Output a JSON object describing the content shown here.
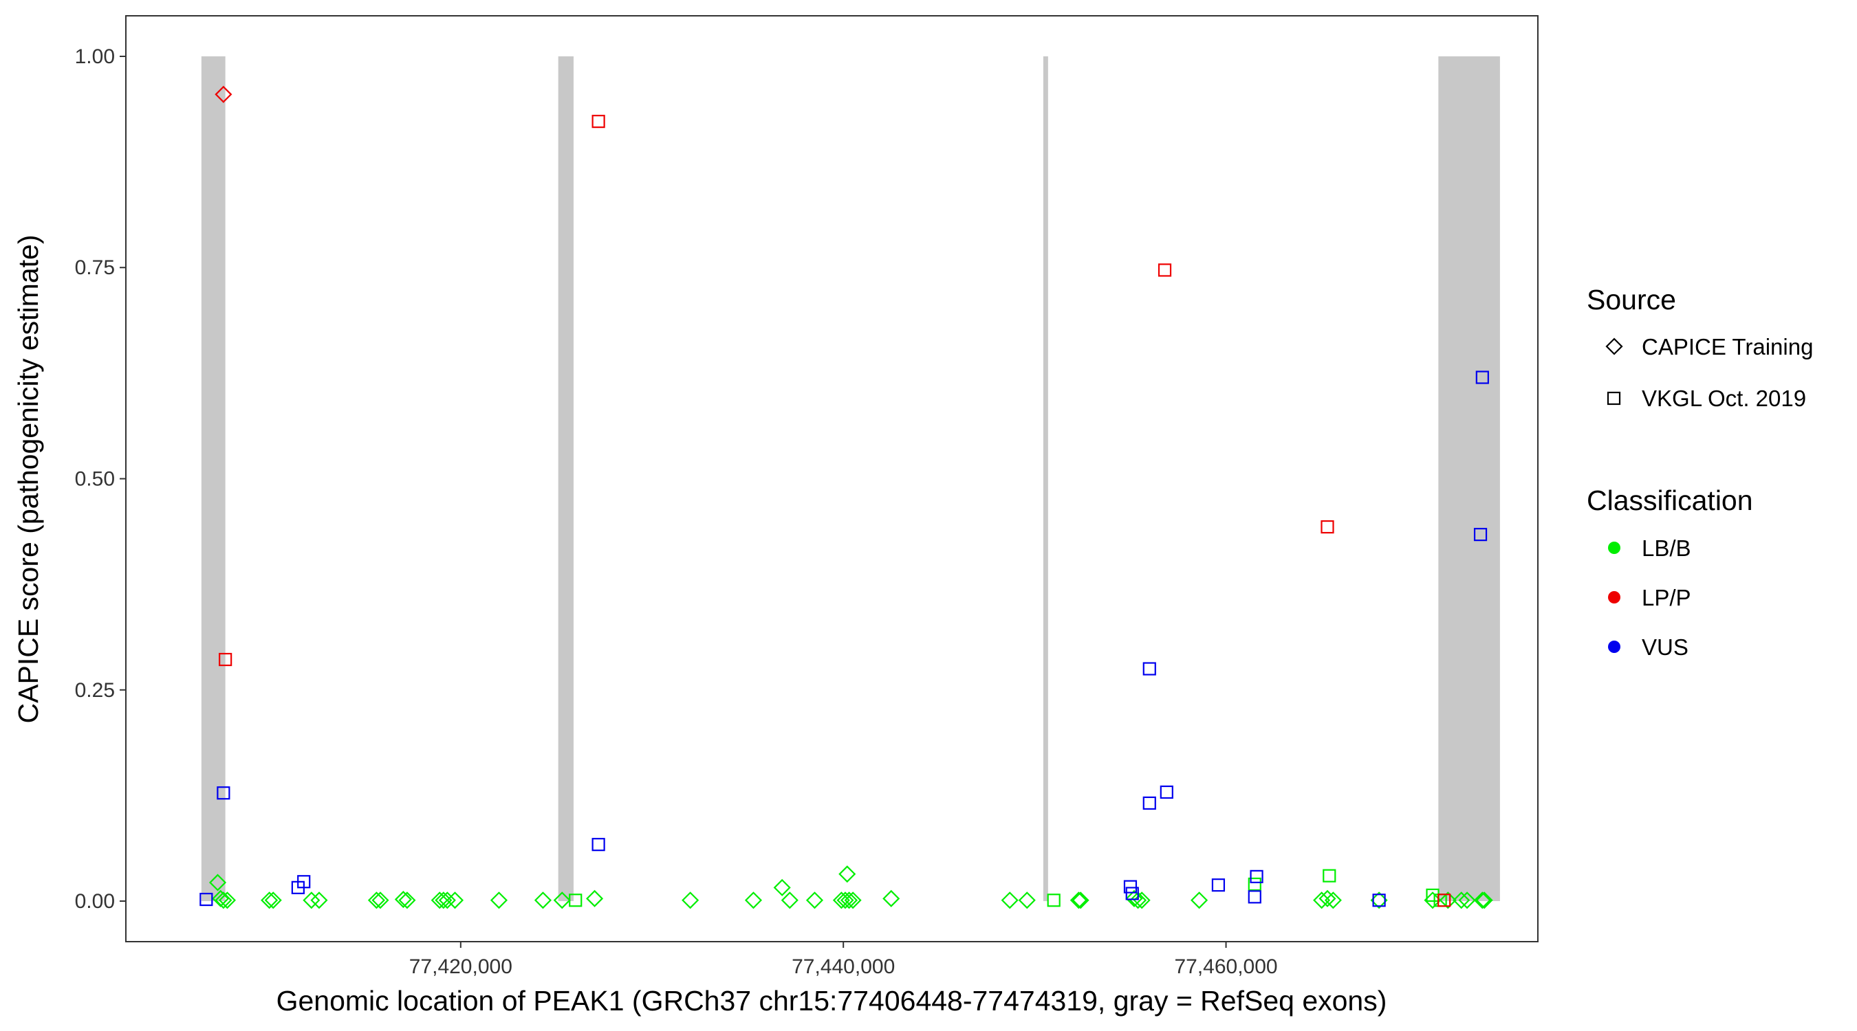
{
  "chart_data": {
    "type": "scatter",
    "xlabel": "Genomic location of PEAK1 (GRCh37 chr15:77406448-77474319, gray = RefSeq exons)",
    "ylabel": "CAPICE score (pathogenicity estimate)",
    "xlim": [
      77402500,
      77476300
    ],
    "ylim": [
      -0.048,
      1.048
    ],
    "x_ticks": [
      77420000,
      77440000,
      77460000
    ],
    "x_tick_labels": [
      "77,420,000",
      "77,440,000",
      "77,460,000"
    ],
    "y_ticks": [
      0,
      0.25,
      0.5,
      0.75,
      1.0
    ],
    "y_tick_labels": [
      "0.00",
      "0.25",
      "0.50",
      "0.75",
      "1.00"
    ],
    "grid": false,
    "exons": [
      [
        77406448,
        77407700
      ],
      [
        77425100,
        77425900
      ],
      [
        77450450,
        77450700
      ],
      [
        77471100,
        77474319
      ]
    ],
    "exon_color": "#c8c8c8",
    "legends": [
      {
        "title": "Source",
        "entries": [
          {
            "label": "CAPICE Training",
            "shape": "diamond"
          },
          {
            "label": "VKGL Oct. 2019",
            "shape": "square"
          }
        ]
      },
      {
        "title": "Classification",
        "entries": [
          {
            "label": "LB/B",
            "color": "#00ee00"
          },
          {
            "label": "LP/P",
            "color": "#ee0000"
          },
          {
            "label": "VUS",
            "color": "#0000ee"
          }
        ]
      }
    ],
    "legend_position": "right",
    "colors": {
      "LB/B": "#00ee00",
      "LP/P": "#ee0000",
      "VUS": "#0000ee"
    },
    "series": [
      {
        "name": "LB/B",
        "shape": "diamond",
        "points": [
          [
            77407300,
            0.022
          ],
          [
            77407450,
            0.003
          ],
          [
            77407600,
            0.001
          ],
          [
            77407800,
            0.001
          ],
          [
            77410000,
            0.001
          ],
          [
            77410200,
            0.001
          ],
          [
            77412200,
            0.001
          ],
          [
            77412600,
            0.001
          ],
          [
            77415600,
            0.001
          ],
          [
            77415800,
            0.001
          ],
          [
            77417000,
            0.002
          ],
          [
            77417200,
            0.001
          ],
          [
            77418900,
            0.001
          ],
          [
            77419100,
            0.001
          ],
          [
            77419300,
            0.001
          ],
          [
            77419700,
            0.001
          ],
          [
            77422000,
            0.001
          ],
          [
            77424300,
            0.001
          ],
          [
            77425300,
            0.001
          ],
          [
            77427000,
            0.003
          ],
          [
            77432000,
            0.001
          ],
          [
            77435300,
            0.001
          ],
          [
            77436800,
            0.016
          ],
          [
            77437200,
            0.001
          ],
          [
            77438500,
            0.001
          ],
          [
            77439900,
            0.001
          ],
          [
            77440100,
            0.001
          ],
          [
            77440200,
            0.032
          ],
          [
            77440300,
            0.001
          ],
          [
            77440500,
            0.001
          ],
          [
            77442500,
            0.003
          ],
          [
            77448700,
            0.001
          ],
          [
            77449600,
            0.001
          ],
          [
            77452300,
            0.001
          ],
          [
            77452400,
            0.001
          ],
          [
            77455200,
            0.003
          ],
          [
            77455400,
            0.001
          ],
          [
            77455600,
            0.001
          ],
          [
            77458600,
            0.001
          ],
          [
            77465000,
            0.001
          ],
          [
            77465300,
            0.003
          ],
          [
            77465600,
            0.001
          ],
          [
            77468000,
            0.001
          ],
          [
            77470800,
            0.001
          ],
          [
            77471600,
            0.001
          ],
          [
            77472300,
            0.001
          ],
          [
            77472600,
            0.001
          ],
          [
            77473400,
            0.001
          ],
          [
            77473500,
            0.001
          ]
        ]
      },
      {
        "name": "LB/B",
        "shape": "square",
        "points": [
          [
            77426000,
            0.001
          ],
          [
            77451000,
            0.001
          ],
          [
            77461500,
            0.02
          ],
          [
            77465400,
            0.03
          ],
          [
            77470800,
            0.007
          ],
          [
            77471200,
            0.001
          ]
        ]
      },
      {
        "name": "LP/P",
        "shape": "diamond",
        "points": [
          [
            77407600,
            0.955
          ]
        ]
      },
      {
        "name": "LP/P",
        "shape": "square",
        "points": [
          [
            77407700,
            0.286
          ],
          [
            77427200,
            0.923
          ],
          [
            77456800,
            0.747
          ],
          [
            77465300,
            0.443
          ],
          [
            77471400,
            0.001
          ]
        ]
      },
      {
        "name": "VUS",
        "shape": "square",
        "points": [
          [
            77406700,
            0.002
          ],
          [
            77407600,
            0.128
          ],
          [
            77411500,
            0.016
          ],
          [
            77411800,
            0.023
          ],
          [
            77427200,
            0.067
          ],
          [
            77455000,
            0.017
          ],
          [
            77455100,
            0.009
          ],
          [
            77456000,
            0.275
          ],
          [
            77456000,
            0.116
          ],
          [
            77456900,
            0.129
          ],
          [
            77459600,
            0.019
          ],
          [
            77461500,
            0.005
          ],
          [
            77461600,
            0.029
          ],
          [
            77468000,
            0.001
          ],
          [
            77473300,
            0.434
          ],
          [
            77473400,
            0.62
          ]
        ]
      }
    ]
  }
}
